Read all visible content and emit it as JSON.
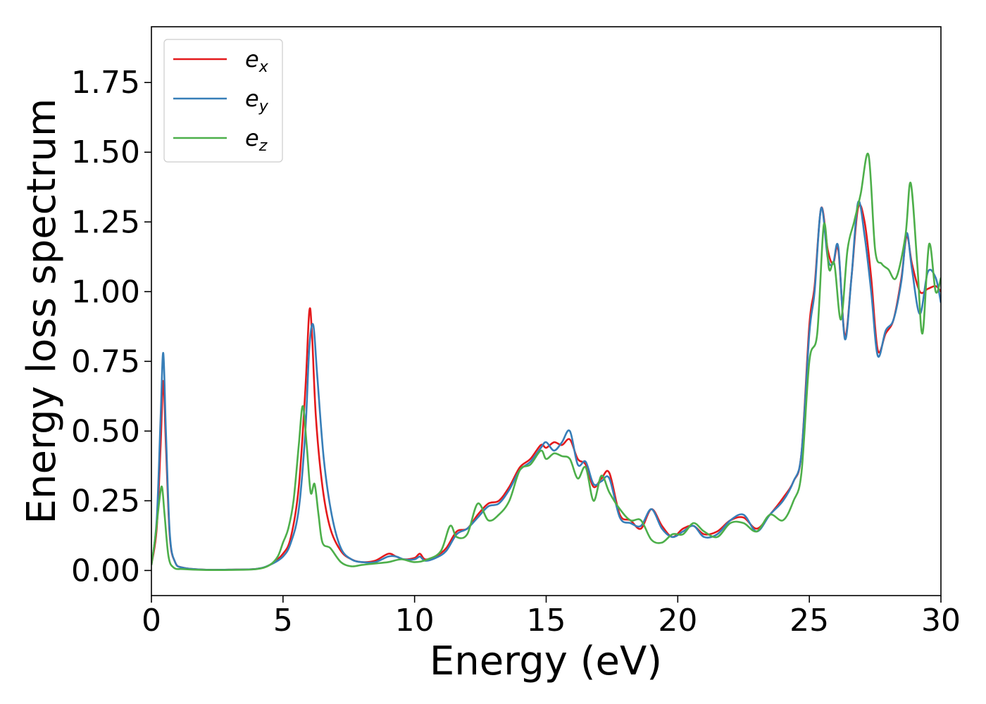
{
  "chart_data": {
    "type": "line",
    "xlabel": "Energy (eV)",
    "ylabel": "Energy loss spectrum",
    "xlim": [
      0,
      30
    ],
    "ylim": [
      -0.09,
      1.95
    ],
    "xticks": [
      0,
      5,
      10,
      15,
      20,
      25,
      30
    ],
    "xtick_labels": [
      "0",
      "5",
      "10",
      "15",
      "20",
      "25",
      "30"
    ],
    "yticks": [
      0,
      0.25,
      0.5,
      0.75,
      1.0,
      1.25,
      1.5,
      1.75
    ],
    "ytick_labels": [
      "0.00",
      "0.25",
      "0.50",
      "0.75",
      "1.00",
      "1.25",
      "1.50",
      "1.75"
    ],
    "grid": false,
    "legend_position": "top-left",
    "series": [
      {
        "name": "e",
        "name_sub": "x",
        "color": "#e41a1c",
        "x": [
          0,
          0.2,
          0.35,
          0.45,
          0.55,
          0.7,
          0.9,
          1.2,
          2,
          3,
          4,
          4.5,
          5,
          5.3,
          5.6,
          5.85,
          6.0,
          6.1,
          6.25,
          6.5,
          6.8,
          7.2,
          7.6,
          8,
          8.5,
          9,
          9.3,
          9.6,
          10,
          10.2,
          10.4,
          10.8,
          11.2,
          11.6,
          12,
          12.4,
          12.8,
          13.2,
          13.6,
          14,
          14.4,
          14.8,
          15.0,
          15.3,
          15.6,
          15.9,
          16.2,
          16.5,
          16.8,
          17.1,
          17.4,
          17.8,
          18.2,
          18.6,
          19,
          19.4,
          19.8,
          20.2,
          20.6,
          21,
          21.5,
          22,
          22.5,
          23,
          23.5,
          24,
          24.4,
          24.7,
          25.0,
          25.2,
          25.45,
          25.7,
          25.9,
          26.1,
          26.35,
          26.6,
          26.85,
          27.1,
          27.35,
          27.6,
          27.9,
          28.2,
          28.5,
          28.7,
          28.9,
          29.2,
          29.5,
          29.8,
          30
        ],
        "y": [
          0.02,
          0.15,
          0.45,
          0.68,
          0.45,
          0.12,
          0.03,
          0.01,
          0.003,
          0.003,
          0.006,
          0.02,
          0.06,
          0.12,
          0.3,
          0.65,
          0.93,
          0.85,
          0.55,
          0.3,
          0.15,
          0.07,
          0.04,
          0.03,
          0.035,
          0.06,
          0.05,
          0.04,
          0.045,
          0.06,
          0.04,
          0.05,
          0.08,
          0.14,
          0.15,
          0.2,
          0.24,
          0.25,
          0.3,
          0.37,
          0.4,
          0.45,
          0.44,
          0.46,
          0.45,
          0.47,
          0.4,
          0.38,
          0.3,
          0.33,
          0.35,
          0.2,
          0.18,
          0.15,
          0.22,
          0.16,
          0.12,
          0.15,
          0.16,
          0.13,
          0.14,
          0.18,
          0.19,
          0.15,
          0.2,
          0.26,
          0.32,
          0.42,
          0.88,
          1.02,
          1.3,
          1.15,
          1.1,
          1.15,
          0.84,
          1.05,
          1.3,
          1.25,
          1.05,
          0.79,
          0.85,
          0.9,
          1.05,
          1.2,
          1.1,
          1.0,
          1.01,
          1.02,
          1.0
        ]
      },
      {
        "name": "e",
        "name_sub": "y",
        "color": "#377eb8",
        "x": [
          0,
          0.2,
          0.35,
          0.45,
          0.55,
          0.7,
          0.9,
          1.2,
          2,
          3,
          4,
          4.5,
          5,
          5.3,
          5.6,
          5.85,
          6.0,
          6.15,
          6.3,
          6.55,
          6.85,
          7.2,
          7.6,
          8,
          8.5,
          9,
          9.3,
          9.6,
          10,
          10.2,
          10.4,
          10.8,
          11.2,
          11.6,
          12,
          12.4,
          12.8,
          13.2,
          13.6,
          14,
          14.4,
          14.8,
          15.0,
          15.3,
          15.6,
          15.9,
          16.2,
          16.5,
          16.8,
          17.1,
          17.4,
          17.8,
          18.2,
          18.6,
          19,
          19.4,
          19.8,
          20.2,
          20.6,
          21,
          21.5,
          22,
          22.5,
          23,
          23.5,
          24,
          24.4,
          24.7,
          25.0,
          25.2,
          25.45,
          25.7,
          25.9,
          26.1,
          26.35,
          26.6,
          26.85,
          27.1,
          27.35,
          27.6,
          27.9,
          28.2,
          28.5,
          28.7,
          28.9,
          29.2,
          29.5,
          29.8,
          30
        ],
        "y": [
          0.02,
          0.18,
          0.55,
          0.78,
          0.5,
          0.13,
          0.03,
          0.01,
          0.003,
          0.003,
          0.006,
          0.02,
          0.05,
          0.1,
          0.22,
          0.5,
          0.8,
          0.88,
          0.7,
          0.4,
          0.2,
          0.08,
          0.04,
          0.03,
          0.03,
          0.05,
          0.05,
          0.04,
          0.04,
          0.05,
          0.035,
          0.045,
          0.07,
          0.13,
          0.15,
          0.19,
          0.23,
          0.24,
          0.29,
          0.36,
          0.39,
          0.44,
          0.46,
          0.43,
          0.46,
          0.5,
          0.38,
          0.39,
          0.31,
          0.32,
          0.33,
          0.19,
          0.17,
          0.16,
          0.22,
          0.15,
          0.12,
          0.14,
          0.16,
          0.12,
          0.13,
          0.18,
          0.2,
          0.14,
          0.2,
          0.25,
          0.32,
          0.42,
          0.85,
          1.0,
          1.3,
          1.12,
          1.1,
          1.16,
          0.83,
          1.05,
          1.32,
          1.2,
          1.0,
          0.77,
          0.86,
          0.9,
          1.04,
          1.21,
          1.08,
          0.92,
          1.07,
          1.05,
          0.96
        ]
      },
      {
        "name": "e",
        "name_sub": "z",
        "color": "#4daf4a",
        "x": [
          0,
          0.15,
          0.3,
          0.4,
          0.5,
          0.65,
          0.85,
          1.2,
          2,
          3,
          4,
          4.5,
          4.8,
          5.0,
          5.2,
          5.4,
          5.6,
          5.75,
          5.9,
          6.05,
          6.2,
          6.35,
          6.5,
          6.8,
          7.2,
          7.6,
          8,
          8.5,
          9,
          9.5,
          10,
          10.5,
          11,
          11.35,
          11.6,
          12,
          12.4,
          12.8,
          13.2,
          13.6,
          14,
          14.4,
          14.8,
          15.0,
          15.3,
          15.6,
          15.9,
          16.2,
          16.5,
          16.8,
          17.1,
          17.4,
          17.8,
          18.2,
          18.6,
          19,
          19.4,
          19.8,
          20.2,
          20.6,
          21,
          21.5,
          22,
          22.5,
          23,
          23.5,
          24,
          24.4,
          24.7,
          25.0,
          25.3,
          25.55,
          25.75,
          25.95,
          26.2,
          26.45,
          26.7,
          26.95,
          27.25,
          27.5,
          27.75,
          28.0,
          28.3,
          28.65,
          28.85,
          29.1,
          29.3,
          29.55,
          29.8,
          30
        ],
        "y": [
          0.02,
          0.12,
          0.25,
          0.3,
          0.2,
          0.05,
          0.01,
          0.005,
          0.002,
          0.002,
          0.005,
          0.02,
          0.05,
          0.1,
          0.15,
          0.25,
          0.45,
          0.59,
          0.45,
          0.28,
          0.31,
          0.2,
          0.1,
          0.08,
          0.03,
          0.015,
          0.02,
          0.025,
          0.03,
          0.04,
          0.03,
          0.04,
          0.07,
          0.16,
          0.12,
          0.13,
          0.24,
          0.18,
          0.2,
          0.25,
          0.36,
          0.38,
          0.43,
          0.4,
          0.42,
          0.41,
          0.4,
          0.33,
          0.37,
          0.25,
          0.34,
          0.28,
          0.22,
          0.18,
          0.18,
          0.11,
          0.1,
          0.13,
          0.13,
          0.17,
          0.14,
          0.12,
          0.17,
          0.17,
          0.14,
          0.2,
          0.18,
          0.25,
          0.35,
          0.75,
          0.85,
          1.24,
          1.08,
          1.1,
          0.9,
          1.15,
          1.25,
          1.35,
          1.49,
          1.15,
          1.1,
          1.08,
          1.05,
          1.2,
          1.39,
          1.1,
          0.85,
          1.17,
          1.0,
          1.05
        ]
      }
    ]
  }
}
